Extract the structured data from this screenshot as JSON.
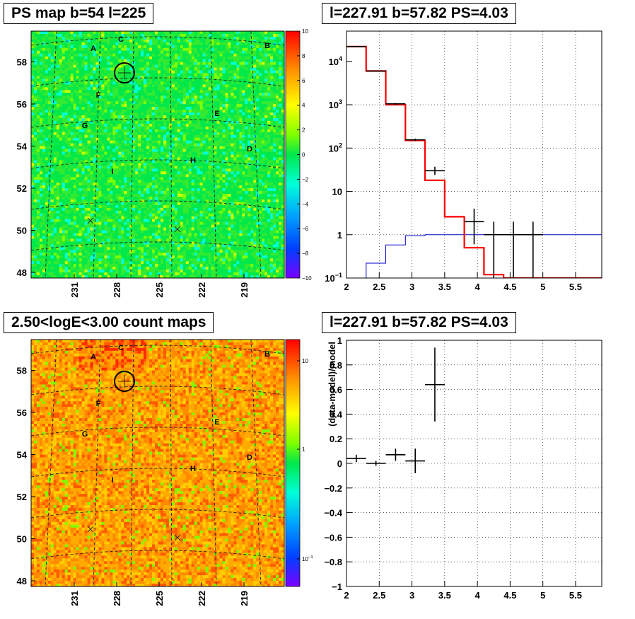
{
  "titles": {
    "map_top": "PS map b=54 l=225",
    "spectrum": "l=227.91 b=57.82 PS=4.03",
    "map_bottom": "2.50<logE<3.00 count maps",
    "residual": "l=227.91 b=57.82 PS=4.03"
  },
  "colors": {
    "data": "#000000",
    "model": "#ff0000",
    "background": "#0000cc",
    "grid": "#000000"
  },
  "chart_data": [
    {
      "type": "heatmap",
      "title": "PS map b=54 l=225",
      "x_ticks": [
        "231",
        "228",
        "225",
        "222",
        "219"
      ],
      "y_ticks": [
        "48",
        "50",
        "52",
        "54",
        "56",
        "58"
      ],
      "colorbar": {
        "scale": "linear",
        "range": [
          -10,
          10
        ],
        "ticks": [
          "10",
          "8",
          "6",
          "4",
          "2",
          "0",
          "−2",
          "−4",
          "−6",
          "−8",
          "−10"
        ]
      },
      "sources": [
        "A",
        "B",
        "C",
        "D",
        "E",
        "F",
        "G",
        "H",
        "I"
      ],
      "dominant_value": "0 (green)",
      "highlight": {
        "l": 227.91,
        "b": 57.82
      }
    },
    {
      "type": "line",
      "subtype": "step-histogram",
      "title": "l=227.91 b=57.82 PS=4.03",
      "y_scale": "log",
      "xlim": [
        2,
        5.9
      ],
      "ylim": [
        0.1,
        50000
      ],
      "x_ticks": [
        "2",
        "2.5",
        "3",
        "3.5",
        "4",
        "4.5",
        "5",
        "5.5"
      ],
      "y_ticks": [
        "10^4",
        "10^3",
        "10^2",
        "10",
        "1",
        "10^-1"
      ],
      "grid": true,
      "edges": [
        2.0,
        2.3,
        2.6,
        2.9,
        3.2,
        3.5,
        3.8,
        4.1,
        4.4,
        4.7,
        5.0,
        5.3,
        5.6,
        5.9
      ],
      "series": [
        {
          "role": "model",
          "values": [
            22000,
            6000,
            1000,
            150,
            18,
            2.6,
            0.5,
            0.12,
            0.1,
            0.1,
            0.1,
            0.1,
            0.1
          ]
        },
        {
          "role": "background",
          "values": [
            0.1,
            0.22,
            0.58,
            0.95,
            1.0,
            1.0,
            1.0,
            1.0,
            1.0,
            1.0,
            1.0,
            1.0,
            1.0
          ]
        },
        {
          "role": "data",
          "points": [
            {
              "x": 2.15,
              "y": 22000,
              "ylo": 21500,
              "yhi": 22500
            },
            {
              "x": 2.45,
              "y": 6000,
              "ylo": 5900,
              "yhi": 6100
            },
            {
              "x": 2.75,
              "y": 1050,
              "ylo": 1000,
              "yhi": 1100
            },
            {
              "x": 3.05,
              "y": 155,
              "ylo": 145,
              "yhi": 165
            },
            {
              "x": 3.35,
              "y": 30,
              "ylo": 24,
              "yhi": 37
            },
            {
              "x": 3.95,
              "y": 2,
              "ylo": 0.6,
              "yhi": 4
            },
            {
              "x": 4.25,
              "y": 1,
              "ylo": 0.1,
              "yhi": 2
            },
            {
              "x": 4.55,
              "y": 1,
              "ylo": 0.1,
              "yhi": 2
            },
            {
              "x": 4.85,
              "y": 1,
              "ylo": 0.1,
              "yhi": 2
            }
          ]
        }
      ]
    },
    {
      "type": "heatmap",
      "title": "2.50<logE<3.00 count maps",
      "x_ticks": [
        "231",
        "228",
        "225",
        "222",
        "219"
      ],
      "y_ticks": [
        "48",
        "50",
        "52",
        "54",
        "56",
        "58"
      ],
      "colorbar": {
        "scale": "log",
        "ticks": [
          "10",
          "1",
          "10^-1"
        ]
      },
      "sources": [
        "A",
        "B",
        "C",
        "D",
        "E",
        "F",
        "G",
        "H",
        "I"
      ],
      "dominant_value": "~5 counts (orange)",
      "highlight": {
        "l": 227.91,
        "b": 57.82
      }
    },
    {
      "type": "scatter",
      "title": "l=227.91 b=57.82 PS=4.03",
      "ylabel": "(data-model)/model",
      "xlim": [
        2,
        5.9
      ],
      "ylim": [
        -1,
        1
      ],
      "x_ticks": [
        "2",
        "2.5",
        "3",
        "3.5",
        "4",
        "4.5",
        "5",
        "5.5"
      ],
      "y_ticks": [
        "1",
        "0.8",
        "0.6",
        "0.4",
        "0.2",
        "0",
        "−0.2",
        "−0.4",
        "−0.6",
        "−0.8",
        "−1"
      ],
      "grid": true,
      "points": [
        {
          "x": 2.15,
          "y": 0.04,
          "xerr": 0.15,
          "yerr": 0.03
        },
        {
          "x": 2.45,
          "y": 0.0,
          "xerr": 0.15,
          "yerr": 0.02
        },
        {
          "x": 2.75,
          "y": 0.07,
          "xerr": 0.15,
          "yerr": 0.05
        },
        {
          "x": 3.05,
          "y": 0.02,
          "xerr": 0.15,
          "yerr": 0.1
        },
        {
          "x": 3.35,
          "y": 0.64,
          "xerr": 0.15,
          "yerr": 0.3
        }
      ]
    }
  ]
}
